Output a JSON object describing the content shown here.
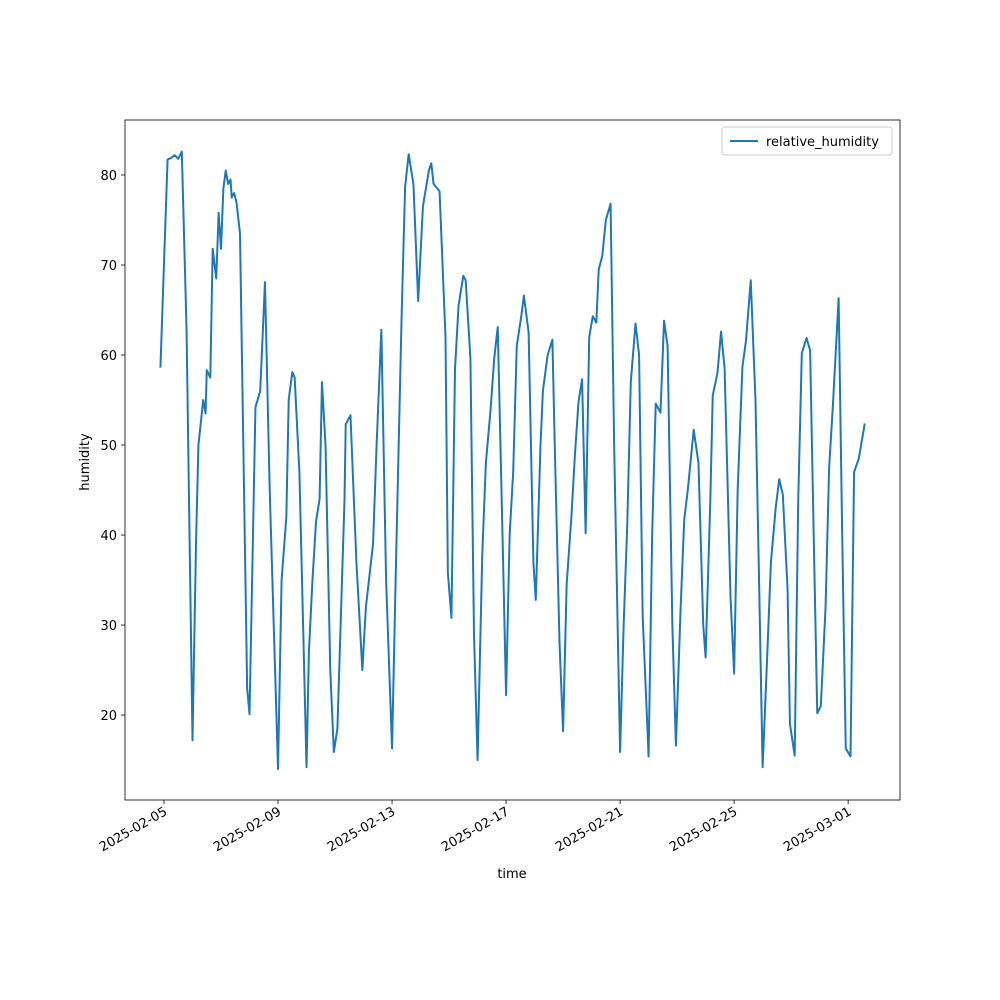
{
  "chart_data": {
    "type": "line",
    "xlabel": "time",
    "ylabel": "humidity",
    "x": [
      "2025-02-04T21:00",
      "2025-02-05T03:00",
      "2025-02-05T06:00",
      "2025-02-05T09:00",
      "2025-02-05T12:00",
      "2025-02-05T15:00",
      "2025-02-05T19:00",
      "2025-02-06T00:00",
      "2025-02-06T03:00",
      "2025-02-06T05:00",
      "2025-02-06T09:00",
      "2025-02-06T11:00",
      "2025-02-06T12:00",
      "2025-02-06T15:00",
      "2025-02-06T17:00",
      "2025-02-06T20:00",
      "2025-02-06T22:00",
      "2025-02-07T00:00",
      "2025-02-07T02:00",
      "2025-02-07T04:00",
      "2025-02-07T06:00",
      "2025-02-07T08:00",
      "2025-02-07T09:00",
      "2025-02-07T11:00",
      "2025-02-07T13:00",
      "2025-02-07T16:00",
      "2025-02-07T22:00",
      "2025-02-08T00:00",
      "2025-02-08T05:00",
      "2025-02-08T09:00",
      "2025-02-08T11:00",
      "2025-02-08T13:00",
      "2025-02-08T17:00",
      "2025-02-09T00:00",
      "2025-02-09T03:00",
      "2025-02-09T07:00",
      "2025-02-09T09:00",
      "2025-02-09T12:00",
      "2025-02-09T14:00",
      "2025-02-09T18:00",
      "2025-02-10T00:00",
      "2025-02-10T02:00",
      "2025-02-10T05:00",
      "2025-02-10T08:00",
      "2025-02-10T11:00",
      "2025-02-10T13:00",
      "2025-02-10T16:00",
      "2025-02-10T20:00",
      "2025-02-10T23:00",
      "2025-02-11T02:00",
      "2025-02-11T08:00",
      "2025-02-11T09:00",
      "2025-02-11T13:00",
      "2025-02-11T18:00",
      "2025-02-11T23:00",
      "2025-02-12T02:00",
      "2025-02-12T08:00",
      "2025-02-12T11:00",
      "2025-02-12T15:00",
      "2025-02-12T19:00",
      "2025-02-13T00:00",
      "2025-02-13T03:00",
      "2025-02-13T08:00",
      "2025-02-13T11:00",
      "2025-02-13T14:00",
      "2025-02-13T18:00",
      "2025-02-13T22:00",
      "2025-02-14T02:00",
      "2025-02-14T07:00",
      "2025-02-14T09:00",
      "2025-02-14T11:00",
      "2025-02-14T16:00",
      "2025-02-14T21:00",
      "2025-02-14T23:00",
      "2025-02-15T02:00",
      "2025-02-15T05:00",
      "2025-02-15T08:00",
      "2025-02-15T12:00",
      "2025-02-15T14:00",
      "2025-02-15T18:00",
      "2025-02-15T21:00",
      "2025-02-16T00:00",
      "2025-02-16T04:00",
      "2025-02-16T07:00",
      "2025-02-16T11:00",
      "2025-02-16T14:00",
      "2025-02-16T17:00",
      "2025-02-16T21:00",
      "2025-02-17T00:00",
      "2025-02-17T03:00",
      "2025-02-17T06:00",
      "2025-02-17T09:00",
      "2025-02-17T13:00",
      "2025-02-17T15:00",
      "2025-02-17T19:00",
      "2025-02-17T23:00",
      "2025-02-18T01:00",
      "2025-02-18T05:00",
      "2025-02-18T07:00",
      "2025-02-18T11:00",
      "2025-02-18T15:00",
      "2025-02-18T17:00",
      "2025-02-18T21:00",
      "2025-02-19T00:00",
      "2025-02-19T03:00",
      "2025-02-19T07:00",
      "2025-02-19T10:00",
      "2025-02-19T13:00",
      "2025-02-19T16:00",
      "2025-02-19T19:00",
      "2025-02-19T22:00",
      "2025-02-20T01:00",
      "2025-02-20T04:00",
      "2025-02-20T06:00",
      "2025-02-20T09:00",
      "2025-02-20T12:00",
      "2025-02-20T16:00",
      "2025-02-20T19:00",
      "2025-02-21T00:00",
      "2025-02-21T03:00",
      "2025-02-21T06:00",
      "2025-02-21T09:00",
      "2025-02-21T13:00",
      "2025-02-21T16:00",
      "2025-02-21T19:00",
      "2025-02-22T00:00",
      "2025-02-22T03:00",
      "2025-02-22T06:00",
      "2025-02-22T10:00",
      "2025-02-22T13:00",
      "2025-02-22T16:00",
      "2025-02-22T20:00",
      "2025-02-22T23:00",
      "2025-02-23T03:00",
      "2025-02-23T06:00",
      "2025-02-23T09:00",
      "2025-02-23T14:00",
      "2025-02-23T18:00",
      "2025-02-23T22:00",
      "2025-02-24T00:00",
      "2025-02-24T04:00",
      "2025-02-24T06:00",
      "2025-02-24T10:00",
      "2025-02-24T13:00",
      "2025-02-24T16:00",
      "2025-02-24T21:00",
      "2025-02-25T00:00",
      "2025-02-25T03:00",
      "2025-02-25T07:00",
      "2025-02-25T10:00",
      "2025-02-25T14:00",
      "2025-02-25T18:00",
      "2025-02-25T21:00",
      "2025-02-26T00:00",
      "2025-02-26T04:00",
      "2025-02-26T07:00",
      "2025-02-26T11:00",
      "2025-02-26T14:00",
      "2025-02-26T17:00",
      "2025-02-26T21:00",
      "2025-02-26T23:00",
      "2025-02-27T03:00",
      "2025-02-27T06:00",
      "2025-02-27T09:00",
      "2025-02-27T13:00",
      "2025-02-27T16:00",
      "2025-02-27T19:00",
      "2025-02-27T22:00",
      "2025-02-28T01:00",
      "2025-02-28T05:00",
      "2025-02-28T08:00",
      "2025-02-28T11:00",
      "2025-02-28T16:00",
      "2025-02-28T19:00",
      "2025-02-28T22:00",
      "2025-03-01T02:00",
      "2025-03-01T05:00",
      "2025-03-01T09:00",
      "2025-03-01T14:00"
    ],
    "series": [
      {
        "name": "relative_humidity",
        "color": "#1f77b4",
        "values": [
          58.6,
          81.7,
          81.9,
          82.2,
          81.8,
          82.6,
          62.8,
          17.2,
          39.4,
          50,
          55,
          53.5,
          58.3,
          57.5,
          71.8,
          68.5,
          75.8,
          71.8,
          78.5,
          80.5,
          79,
          79.5,
          77.5,
          78,
          77,
          73.5,
          23,
          20.1,
          54.2,
          56,
          62,
          68.1,
          45,
          14,
          35,
          42,
          55,
          58.1,
          57.5,
          47,
          14.2,
          27,
          35,
          41.5,
          44,
          57,
          50,
          25,
          15.9,
          18.5,
          44,
          52.3,
          53.3,
          37,
          25,
          32,
          39,
          50,
          62.8,
          35,
          16.3,
          35,
          64,
          78.7,
          82.3,
          79,
          66,
          76.5,
          80.5,
          81.3,
          79,
          78.2,
          62,
          35.8,
          30.8,
          58.4,
          65.5,
          68.8,
          68.3,
          59.6,
          29,
          15,
          38,
          48,
          54,
          59.6,
          63.1,
          40,
          22.2,
          40,
          47,
          61,
          64.5,
          66.6,
          62.5,
          37,
          32.8,
          50,
          56,
          60,
          61.7,
          50,
          28,
          18.2,
          34.5,
          42,
          49,
          54.8,
          57.3,
          40.2,
          62,
          64.3,
          63.6,
          69.5,
          71,
          75,
          76.8,
          50,
          15.9,
          30,
          41,
          57,
          63.5,
          60,
          31,
          15.4,
          40,
          54.6,
          53.6,
          63.8,
          61,
          30,
          16.6,
          32,
          41.7,
          45,
          51.7,
          48,
          30,
          26.4,
          44,
          55.5,
          58,
          62.6,
          58.5,
          33,
          24.6,
          45,
          58.7,
          61.6,
          68.3,
          55,
          35,
          14.2,
          27,
          37,
          43,
          46.2,
          44.5,
          34,
          19,
          15.5,
          44,
          60.2,
          61.9,
          60.5,
          40,
          20.2,
          21,
          32,
          47.5,
          54,
          66.3,
          40,
          16.3,
          15.4,
          47,
          48.5,
          52.4
        ]
      }
    ],
    "xlim": [
      "2025-02-03T15:10",
      "2025-03-02T19:40"
    ],
    "xticks": [
      "2025-02-05",
      "2025-02-09",
      "2025-02-13",
      "2025-02-17",
      "2025-02-21",
      "2025-02-25",
      "2025-03-01"
    ],
    "ylim": [
      10.56,
      86.11
    ],
    "yticks": [
      20,
      30,
      40,
      50,
      60,
      70,
      80
    ],
    "legend": "upper right"
  }
}
